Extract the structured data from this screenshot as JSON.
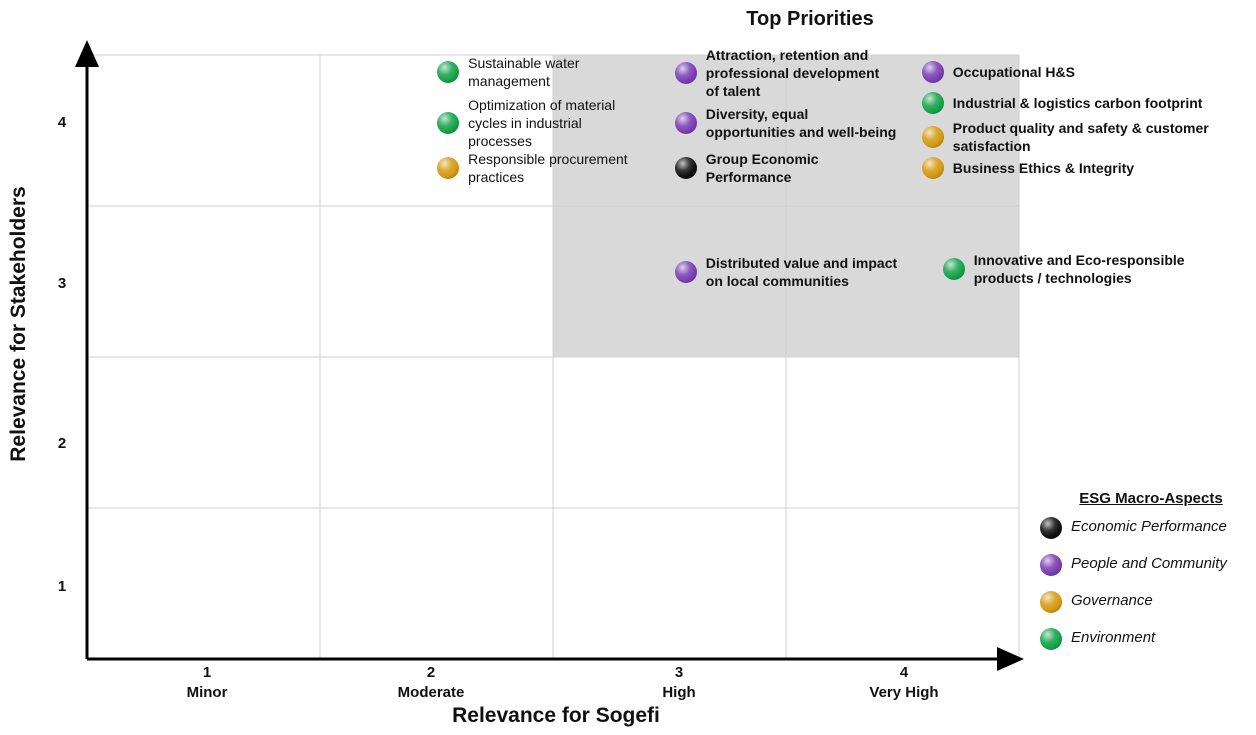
{
  "colors": {
    "Economic": "#111111",
    "People": "#7b3fb5",
    "Governance": "#d49a12",
    "Environment": "#16a34a",
    "top_priority_fill": "#d9d9d9",
    "grid": "#d0d0d0"
  },
  "chart_data": {
    "type": "scatter",
    "title": "Top Priorities",
    "xlabel": "Relevance for Sogefi",
    "ylabel": "Relevance for Stakeholders",
    "x_ticks": [
      {
        "value": "1",
        "label": "Minor"
      },
      {
        "value": "2",
        "label": "Moderate"
      },
      {
        "value": "3",
        "label": "High"
      },
      {
        "value": "4",
        "label": "Very High"
      }
    ],
    "y_ticks": [
      "1",
      "2",
      "3",
      "4"
    ],
    "xlim": [
      0.5,
      4.5
    ],
    "ylim": [
      0.5,
      4.5
    ],
    "top_priority_region": {
      "x": [
        2.5,
        4.5
      ],
      "y": [
        2.5,
        4.5
      ]
    },
    "grid": true,
    "legend": {
      "title": "ESG Macro-Aspects",
      "position": "bottom-right",
      "items": [
        {
          "label": "Economic Performance",
          "category": "Economic"
        },
        {
          "label": "People and Community",
          "category": "People"
        },
        {
          "label": "Governance",
          "category": "Governance"
        },
        {
          "label": "Environment",
          "category": "Environment"
        }
      ]
    },
    "points": [
      {
        "lines": [
          "Sustainable water",
          "management"
        ],
        "category": "Environment",
        "bold": false,
        "x": 2.05,
        "y": 4.39
      },
      {
        "lines": [
          "Optimization of material",
          "cycles in industrial",
          "processes"
        ],
        "category": "Environment",
        "bold": false,
        "x": 2.05,
        "y": 4.05
      },
      {
        "lines": [
          "Responsible procurement",
          "practices"
        ],
        "category": "Governance",
        "bold": false,
        "x": 2.05,
        "y": 3.75
      },
      {
        "lines": [
          "Attraction, retention and",
          "professional development",
          "of talent"
        ],
        "category": "People",
        "bold": true,
        "x": 3.07,
        "y": 4.38
      },
      {
        "lines": [
          "Diversity, equal",
          "opportunities and well-being"
        ],
        "category": "People",
        "bold": true,
        "x": 3.07,
        "y": 4.05
      },
      {
        "lines": [
          "Group Economic",
          "Performance"
        ],
        "category": "Economic",
        "bold": true,
        "x": 3.07,
        "y": 3.75
      },
      {
        "lines": [
          "Distributed value and impact",
          "on local communities"
        ],
        "category": "People",
        "bold": true,
        "x": 3.07,
        "y": 3.06
      },
      {
        "lines": [
          "Occupational H&S"
        ],
        "category": "People",
        "bold": true,
        "x": 4.13,
        "y": 4.39
      },
      {
        "lines": [
          "Industrial & logistics carbon footprint"
        ],
        "category": "Environment",
        "bold": true,
        "x": 4.13,
        "y": 4.18
      },
      {
        "lines": [
          "Product quality and safety & customer",
          "satisfaction"
        ],
        "category": "Governance",
        "bold": true,
        "x": 4.13,
        "y": 3.96
      },
      {
        "lines": [
          "Business Ethics & Integrity"
        ],
        "category": "Governance",
        "bold": true,
        "x": 4.13,
        "y": 3.75
      },
      {
        "lines": [
          "Innovative and Eco-responsible",
          "products / technologies"
        ],
        "category": "Environment",
        "bold": true,
        "x": 4.22,
        "y": 3.08
      }
    ]
  }
}
